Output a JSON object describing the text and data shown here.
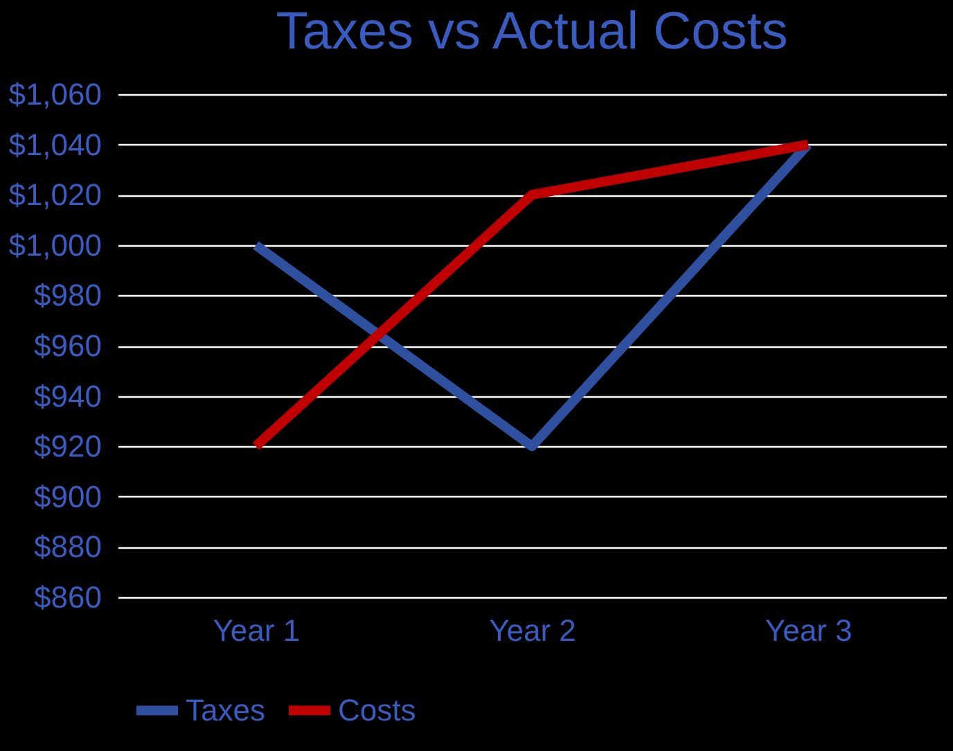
{
  "chart_data": {
    "type": "line",
    "title": "Taxes vs Actual Costs",
    "categories": [
      "Year 1",
      "Year 2",
      "Year 3"
    ],
    "series": [
      {
        "name": "Taxes",
        "color": "#2f4f9f",
        "values": [
          1000,
          920,
          1040
        ]
      },
      {
        "name": "Costs",
        "color": "#c00000",
        "values": [
          920,
          1020,
          1040
        ]
      }
    ],
    "ylim": [
      860,
      1060
    ],
    "yticks": [
      {
        "value": 860,
        "label": "$860"
      },
      {
        "value": 880,
        "label": "$880"
      },
      {
        "value": 900,
        "label": "$900"
      },
      {
        "value": 920,
        "label": "$920"
      },
      {
        "value": 940,
        "label": "$940"
      },
      {
        "value": 960,
        "label": "$960"
      },
      {
        "value": 980,
        "label": "$980"
      },
      {
        "value": 1000,
        "label": "$1,000"
      },
      {
        "value": 1020,
        "label": "$1,020"
      },
      {
        "value": 1040,
        "label": "$1,040"
      },
      {
        "value": 1060,
        "label": "$1,060"
      }
    ],
    "grid": "y",
    "legend": "bottom",
    "marker": "none",
    "line_style": "solid"
  }
}
